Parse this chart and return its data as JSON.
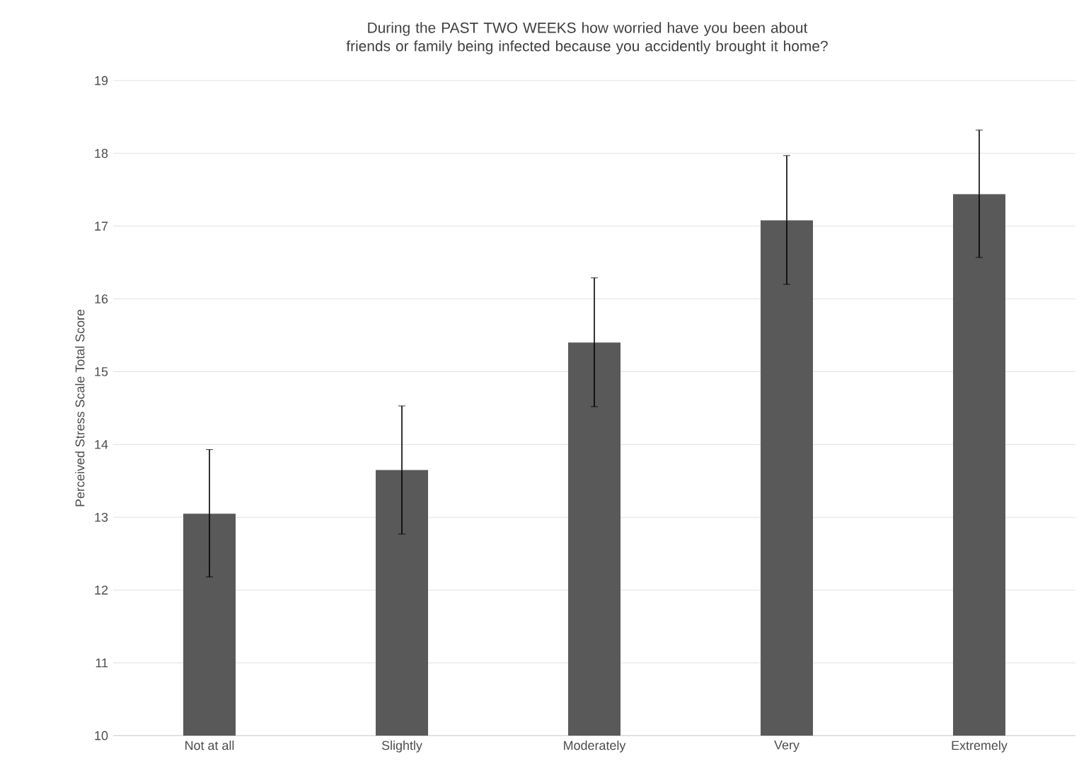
{
  "chart_data": {
    "type": "bar",
    "title": "During the PAST TWO WEEKS how worried have you been about friends or family being infected because you accidently brought it home?",
    "ylabel": "Perceived Stress Scale Total Score",
    "categories": [
      "Not at all",
      "Slightly",
      "Moderately",
      "Very",
      "Extremely"
    ],
    "values": [
      13.05,
      13.65,
      15.4,
      17.08,
      17.44
    ],
    "errors": [
      [
        12.18,
        13.93
      ],
      [
        12.77,
        14.53
      ],
      [
        14.52,
        16.29
      ],
      [
        16.2,
        17.97
      ],
      [
        16.57,
        18.32
      ]
    ],
    "color": "#595959",
    "ylim": [
      10,
      19
    ],
    "yticks": [
      10,
      11,
      12,
      13,
      14,
      15,
      16,
      17,
      18,
      19
    ],
    "grid": "y"
  }
}
